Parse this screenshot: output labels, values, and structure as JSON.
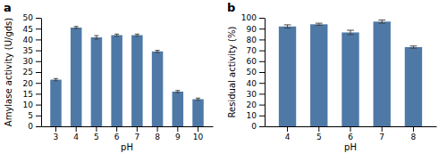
{
  "chart_data": [
    {
      "type": "bar",
      "title": "a",
      "categories": [
        3,
        4,
        5,
        6,
        7,
        8,
        9,
        10
      ],
      "values": [
        21.5,
        45.5,
        41.0,
        42.0,
        42.0,
        34.5,
        16.0,
        12.5
      ],
      "errors": [
        0.5,
        0.5,
        0.8,
        0.5,
        0.5,
        0.5,
        0.5,
        0.5
      ],
      "xlabel": "pH",
      "ylabel": "Amylase activity (U/gds)",
      "ylim": [
        0,
        50
      ],
      "yticks": [
        0,
        5,
        10,
        15,
        20,
        25,
        30,
        35,
        40,
        45,
        50
      ]
    },
    {
      "type": "bar",
      "title": "b",
      "categories": [
        4,
        5,
        6,
        7,
        8
      ],
      "values": [
        92.0,
        94.0,
        86.5,
        96.5,
        73.0
      ],
      "errors": [
        1.5,
        1.0,
        2.0,
        1.5,
        1.0
      ],
      "xlabel": "pH",
      "ylabel": "Residual activity (%)",
      "ylim": [
        0,
        100
      ],
      "yticks": [
        0,
        10,
        20,
        30,
        40,
        50,
        60,
        70,
        80,
        90,
        100
      ]
    }
  ]
}
